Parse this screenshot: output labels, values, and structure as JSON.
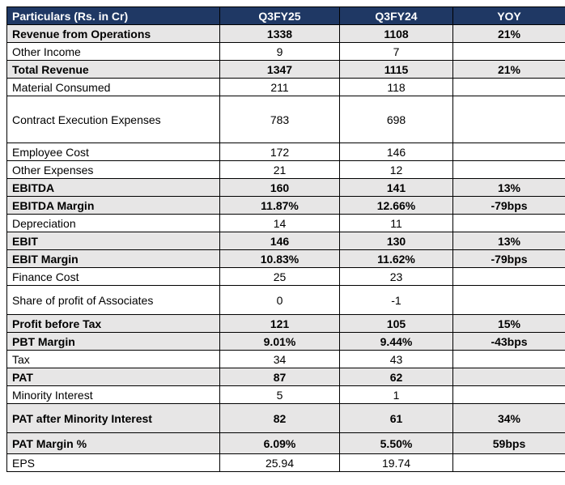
{
  "table": {
    "headers": [
      "Particulars (Rs. in Cr)",
      "Q3FY25",
      "Q3FY24",
      "YOY"
    ],
    "rows": [
      {
        "label": "Revenue from Operations",
        "q3fy25": "1338",
        "q3fy24": "1108",
        "yoy": "21%",
        "bold": true,
        "shaded": true,
        "yoy_bold": true
      },
      {
        "label": "Other Income",
        "q3fy25": "9",
        "q3fy24": "7",
        "yoy": "",
        "bold": false,
        "shaded": false
      },
      {
        "label": "Total Revenue",
        "q3fy25": "1347",
        "q3fy24": "1115",
        "yoy": "21%",
        "bold": true,
        "shaded": true,
        "yoy_bold": true
      },
      {
        "label": "Material Consumed",
        "q3fy25": "211",
        "q3fy24": "118",
        "yoy": "",
        "bold": false,
        "shaded": false
      },
      {
        "label": "Contract Execution Expenses",
        "q3fy25": "783",
        "q3fy24": "698",
        "yoy": "",
        "bold": false,
        "shaded": false,
        "tall": true
      },
      {
        "label": "Employee Cost",
        "q3fy25": "172",
        "q3fy24": "146",
        "yoy": "",
        "bold": false,
        "shaded": false
      },
      {
        "label": "Other Expenses",
        "q3fy25": "21",
        "q3fy24": "12",
        "yoy": "",
        "bold": false,
        "shaded": false
      },
      {
        "label": "EBITDA",
        "q3fy25": "160",
        "q3fy24": "141",
        "yoy": "13%",
        "bold": true,
        "shaded": true,
        "yoy_bold": true
      },
      {
        "label": "EBITDA Margin",
        "q3fy25": "11.87%",
        "q3fy24": "12.66%",
        "yoy": "-79bps",
        "bold": true,
        "shaded": true,
        "yoy_bold": false
      },
      {
        "label": "Depreciation",
        "q3fy25": "14",
        "q3fy24": "11",
        "yoy": "",
        "bold": false,
        "shaded": false
      },
      {
        "label": "EBIT",
        "q3fy25": "146",
        "q3fy24": "130",
        "yoy": "13%",
        "bold": true,
        "shaded": true,
        "yoy_bold": true
      },
      {
        "label": "EBIT Margin",
        "q3fy25": "10.83%",
        "q3fy24": "11.62%",
        "yoy": "-79bps",
        "bold": true,
        "shaded": true,
        "yoy_bold": false
      },
      {
        "label": "Finance Cost",
        "q3fy25": "25",
        "q3fy24": "23",
        "yoy": "",
        "bold": false,
        "shaded": false
      },
      {
        "label": "Share of profit of Associates",
        "q3fy25": "0",
        "q3fy24": "-1",
        "yoy": "",
        "bold": false,
        "shaded": false,
        "mid": true
      },
      {
        "label": "Profit before Tax",
        "q3fy25": "121",
        "q3fy24": "105",
        "yoy": "15%",
        "bold": true,
        "shaded": true,
        "yoy_bold": true
      },
      {
        "label": "PBT Margin",
        "q3fy25": "9.01%",
        "q3fy24": "9.44%",
        "yoy": "-43bps",
        "bold": true,
        "shaded": true,
        "yoy_bold": false
      },
      {
        "label": "Tax",
        "q3fy25": "34",
        "q3fy24": "43",
        "yoy": "",
        "bold": false,
        "shaded": false
      },
      {
        "label": "PAT",
        "q3fy25": "87",
        "q3fy24": "62",
        "yoy": "",
        "bold": true,
        "shaded": true,
        "yoy_bold": true
      },
      {
        "label": "Minority Interest",
        "q3fy25": "5",
        "q3fy24": "1",
        "yoy": "",
        "bold": false,
        "shaded": false
      },
      {
        "label": "PAT after Minority Interest",
        "q3fy25": "82",
        "q3fy24": "61",
        "yoy": "34%",
        "bold": true,
        "shaded": true,
        "yoy_bold": true,
        "mid": true
      },
      {
        "label": "PAT Margin %",
        "q3fy25": "6.09%",
        "q3fy24": "5.50%",
        "yoy": "59bps",
        "bold": true,
        "shaded": true,
        "yoy_bold": false,
        "medium": true
      },
      {
        "label": "EPS",
        "q3fy25": "25.94",
        "q3fy24": "19.74",
        "yoy": "",
        "bold": false,
        "shaded": false
      }
    ]
  },
  "colors": {
    "header_bg": "#1f3864",
    "header_text": "#ffffff",
    "shade_bg": "#e7e6e6"
  }
}
